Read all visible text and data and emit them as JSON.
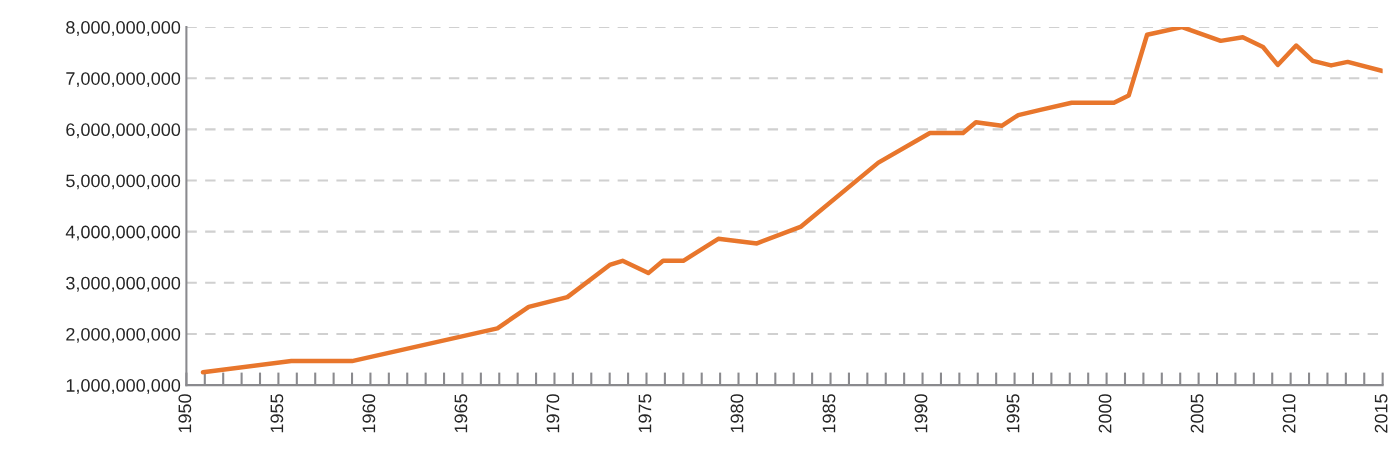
{
  "chart_data": {
    "type": "line",
    "x": [
      1950.9,
      1955.7,
      1959.0,
      1966.9,
      1968.6,
      1970.7,
      1973.0,
      1973.7,
      1975.1,
      1975.9,
      1977.0,
      1978.9,
      1981.0,
      1983.4,
      1987.6,
      1990.4,
      1992.2,
      1992.9,
      1994.3,
      1995.2,
      1996.4,
      1998.1,
      2000.4,
      2001.2,
      2002.2,
      2004.1,
      2006.2,
      2007.4,
      2008.5,
      2009.3,
      2010.3,
      2011.2,
      2012.2,
      2013.1,
      2015.0
    ],
    "series": [
      {
        "color": "#e8762c",
        "values": [
          1250000000,
          1470000000,
          1470000000,
          2110000000,
          2530000000,
          2720000000,
          3350000000,
          3430000000,
          3190000000,
          3430000000,
          3430000000,
          3860000000,
          3770000000,
          4100000000,
          5350000000,
          5930000000,
          5930000000,
          6140000000,
          6070000000,
          6280000000,
          6380000000,
          6520000000,
          6520000000,
          6660000000,
          7850000000,
          8000000000,
          7730000000,
          7800000000,
          7610000000,
          7260000000,
          7640000000,
          7340000000,
          7250000000,
          7320000000,
          7140000000
        ]
      }
    ],
    "xlim": [
      1950,
      2015
    ],
    "xticks": [
      1950,
      {
        "value": 1951,
        "label": null
      },
      {
        "value": 1952,
        "label": null
      },
      {
        "value": 1953,
        "label": null
      },
      {
        "value": 1954,
        "label": null
      },
      1955,
      {
        "value": 1956,
        "label": null
      },
      {
        "value": 1957,
        "label": null
      },
      {
        "value": 1958,
        "label": null
      },
      {
        "value": 1959,
        "label": null
      },
      1960,
      {
        "value": 1961,
        "label": null
      },
      {
        "value": 1962,
        "label": null
      },
      {
        "value": 1963,
        "label": null
      },
      {
        "value": 1964,
        "label": null
      },
      1965,
      {
        "value": 1966,
        "label": null
      },
      {
        "value": 1967,
        "label": null
      },
      {
        "value": 1968,
        "label": null
      },
      {
        "value": 1969,
        "label": null
      },
      1970,
      {
        "value": 1971,
        "label": null
      },
      {
        "value": 1972,
        "label": null
      },
      {
        "value": 1973,
        "label": null
      },
      {
        "value": 1974,
        "label": null
      },
      1975,
      {
        "value": 1976,
        "label": null
      },
      {
        "value": 1977,
        "label": null
      },
      {
        "value": 1978,
        "label": null
      },
      {
        "value": 1979,
        "label": null
      },
      1980,
      {
        "value": 1981,
        "label": null
      },
      {
        "value": 1982,
        "label": null
      },
      {
        "value": 1983,
        "label": null
      },
      {
        "value": 1984,
        "label": null
      },
      1985,
      {
        "value": 1986,
        "label": null
      },
      {
        "value": 1987,
        "label": null
      },
      {
        "value": 1988,
        "label": null
      },
      {
        "value": 1989,
        "label": null
      },
      1990,
      {
        "value": 1991,
        "label": null
      },
      {
        "value": 1992,
        "label": null
      },
      {
        "value": 1993,
        "label": null
      },
      {
        "value": 1994,
        "label": null
      },
      1995,
      {
        "value": 1996,
        "label": null
      },
      {
        "value": 1997,
        "label": null
      },
      {
        "value": 1998,
        "label": null
      },
      {
        "value": 1999,
        "label": null
      },
      2000,
      {
        "value": 2001,
        "label": null
      },
      {
        "value": 2002,
        "label": null
      },
      {
        "value": 2003,
        "label": null
      },
      {
        "value": 2004,
        "label": null
      },
      2005,
      {
        "value": 2006,
        "label": null
      },
      {
        "value": 2007,
        "label": null
      },
      {
        "value": 2008,
        "label": null
      },
      {
        "value": 2009,
        "label": null
      },
      2010,
      {
        "value": 2011,
        "label": null
      },
      {
        "value": 2012,
        "label": null
      },
      {
        "value": 2013,
        "label": null
      },
      {
        "value": 2014,
        "label": null
      },
      2015
    ],
    "ylim": [
      1000000000,
      8000000000
    ],
    "yticks": [
      {
        "value": 1000000000,
        "label": "1,000,000,000"
      },
      {
        "value": 2000000000,
        "label": "2,000,000,000"
      },
      {
        "value": 3000000000,
        "label": "3,000,000,000"
      },
      {
        "value": 4000000000,
        "label": "4,000,000,000"
      },
      {
        "value": 5000000000,
        "label": "5,000,000,000"
      },
      {
        "value": 6000000000,
        "label": "6,000,000,000"
      },
      {
        "value": 7000000000,
        "label": "7,000,000,000"
      },
      {
        "value": 8000000000,
        "label": "8,000,000,000"
      }
    ],
    "grid": "y",
    "marker": "none",
    "line_style": "solid"
  }
}
